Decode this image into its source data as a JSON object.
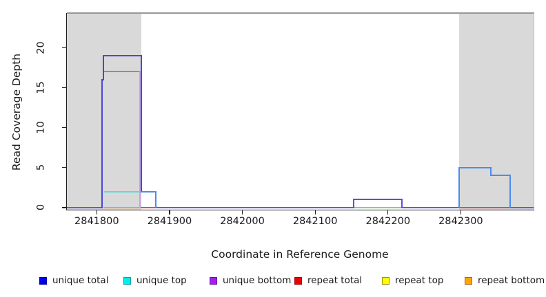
{
  "axes": {
    "x_title": "Coordinate in Reference Genome",
    "y_title": "Read Coverage Depth",
    "x_tick_labels": [
      "2841800",
      "2841900",
      "2842000",
      "2842100",
      "2842200",
      "2842300"
    ],
    "y_tick_labels": [
      "0",
      "5",
      "10",
      "15",
      "20"
    ]
  },
  "legend": {
    "items": [
      {
        "label": "unique total",
        "fill": "#0000ee",
        "border": "#0000a0"
      },
      {
        "label": "unique top",
        "fill": "#00eeee",
        "border": "#00a0a0"
      },
      {
        "label": "unique bottom",
        "fill": "#a020f0",
        "border": "#6a14a0"
      },
      {
        "label": "repeat total",
        "fill": "#ee0000",
        "border": "#a00000"
      },
      {
        "label": "repeat top",
        "fill": "#ffff00",
        "border": "#9a9000"
      },
      {
        "label": "repeat bottom",
        "fill": "#ffa500",
        "border": "#a86a00"
      }
    ]
  },
  "chart_data": {
    "type": "line",
    "subtype": "step-coverage-plot",
    "title": "",
    "xlabel": "Coordinate in Reference Genome",
    "ylabel": "Read Coverage Depth",
    "xlim": [
      2841759,
      2842400
    ],
    "ylim": [
      -0.26,
      24.32
    ],
    "xticks": [
      2841800,
      2841900,
      2842000,
      2842100,
      2842200,
      2842300
    ],
    "yticks": [
      0,
      5,
      10,
      15,
      20
    ],
    "grid": false,
    "legend_position": "bottom",
    "shade_color": "#d9d9d9",
    "shaded_regions": [
      {
        "x0": 2841759,
        "x1": 2841861
      },
      {
        "x0": 2842298,
        "x1": 2842400
      }
    ],
    "series": [
      {
        "name": "unique total",
        "color": "#0000ee",
        "steps": [
          [
            2841759,
            0
          ],
          [
            2841807,
            0
          ],
          [
            2841807,
            16
          ],
          [
            2841809,
            16
          ],
          [
            2841809,
            19
          ],
          [
            2841861,
            19
          ],
          [
            2841861,
            2
          ],
          [
            2841881,
            2
          ],
          [
            2841881,
            0
          ],
          [
            2842153,
            0
          ],
          [
            2842153,
            1
          ],
          [
            2842219,
            1
          ],
          [
            2842219,
            0
          ],
          [
            2842298,
            0
          ],
          [
            2842298,
            5
          ],
          [
            2842341,
            5
          ],
          [
            2842341,
            4
          ],
          [
            2842368,
            4
          ],
          [
            2842368,
            0
          ],
          [
            2842400,
            0
          ]
        ]
      },
      {
        "name": "unique top",
        "color": "#00eeee",
        "steps": [
          [
            2841759,
            0
          ],
          [
            2841809,
            0
          ],
          [
            2841809,
            2
          ],
          [
            2841859,
            2
          ],
          [
            2841859,
            0
          ],
          [
            2842400,
            0
          ]
        ]
      },
      {
        "name": "unique bottom",
        "color": "#a020f0",
        "steps": [
          [
            2841759,
            0
          ],
          [
            2841807,
            0
          ],
          [
            2841807,
            17
          ],
          [
            2841859,
            17
          ],
          [
            2841859,
            0
          ],
          [
            2842153,
            0
          ],
          [
            2842153,
            1
          ],
          [
            2842219,
            1
          ],
          [
            2842219,
            0
          ],
          [
            2842400,
            0
          ]
        ]
      },
      {
        "name": "repeat total",
        "color": "#ee0000",
        "steps": [
          [
            2841759,
            0
          ],
          [
            2842400,
            0
          ]
        ]
      },
      {
        "name": "repeat top",
        "color": "#ffff00",
        "steps": [
          [
            2841759,
            0
          ],
          [
            2842400,
            0
          ]
        ]
      },
      {
        "name": "repeat bottom",
        "color": "#ffa500",
        "steps": [
          [
            2841759,
            0
          ],
          [
            2842400,
            0
          ]
        ]
      }
    ],
    "render_segments": [
      {
        "x1": 2841759,
        "v1": 0,
        "x2": 2841807,
        "v2": 0,
        "color": "#6459e3"
      },
      {
        "x1": 2841881,
        "v1": 0,
        "x2": 2842153,
        "v2": 0,
        "color": "#6459e3"
      },
      {
        "x1": 2842219,
        "v1": 0,
        "x2": 2842298,
        "v2": 0,
        "color": "#6459e3"
      },
      {
        "x1": 2842368,
        "v1": 0,
        "x2": 2842400,
        "v2": 0,
        "color": "#6459e3"
      },
      {
        "x1": 2841809,
        "v1": 0,
        "x2": 2841860,
        "v2": 0,
        "color": "#ff9e1e"
      },
      {
        "x1": 2841860,
        "v1": 0,
        "x2": 2841881,
        "v2": 0,
        "color": "#e2495e"
      },
      {
        "x1": 2842298,
        "v1": 0,
        "x2": 2842368,
        "v2": 0,
        "color": "#e2495e"
      },
      {
        "x1": 2842153,
        "v1": 0,
        "x2": 2842219,
        "v2": 0,
        "color": "#8ccc8c"
      },
      {
        "x1": 2842153,
        "v1": 0,
        "x2": 2842153,
        "v2": 1,
        "color": "#5a4fdf"
      },
      {
        "x1": 2842153,
        "v1": 1,
        "x2": 2842219,
        "v2": 1,
        "color": "#5a4fdf"
      },
      {
        "x1": 2842219,
        "v1": 1,
        "x2": 2842219,
        "v2": 0,
        "color": "#5a4fdf"
      },
      {
        "x1": 2841808,
        "v1": 17,
        "x2": 2841859,
        "v2": 17,
        "color": "#a873da"
      },
      {
        "x1": 2841859,
        "v1": 17,
        "x2": 2841859,
        "v2": 0,
        "color": "#c99fe8"
      },
      {
        "x1": 2841810,
        "v1": 2,
        "x2": 2841859,
        "v2": 2,
        "color": "#5adada"
      },
      {
        "x1": 2841807,
        "v1": 0,
        "x2": 2841807,
        "v2": 16,
        "color": "#4a46dd"
      },
      {
        "x1": 2841807,
        "v1": 16,
        "x2": 2841809,
        "v2": 16,
        "color": "#4a46dd"
      },
      {
        "x1": 2841809,
        "v1": 16,
        "x2": 2841809,
        "v2": 19,
        "color": "#4a46dd"
      },
      {
        "x1": 2841809,
        "v1": 19,
        "x2": 2841861,
        "v2": 19,
        "color": "#4a46dd"
      },
      {
        "x1": 2841861,
        "v1": 19,
        "x2": 2841861,
        "v2": 2,
        "color": "#4a46dd"
      },
      {
        "x1": 2841861,
        "v1": 2,
        "x2": 2841881,
        "v2": 2,
        "color": "#4b8bef"
      },
      {
        "x1": 2841881,
        "v1": 2,
        "x2": 2841881,
        "v2": 0,
        "color": "#4b8bef"
      },
      {
        "x1": 2842298,
        "v1": 0,
        "x2": 2842298,
        "v2": 5,
        "color": "#4b8bef"
      },
      {
        "x1": 2842298,
        "v1": 5,
        "x2": 2842341,
        "v2": 5,
        "color": "#4b8bef"
      },
      {
        "x1": 2842341,
        "v1": 5,
        "x2": 2842341,
        "v2": 4,
        "color": "#4b8bef"
      },
      {
        "x1": 2842341,
        "v1": 4,
        "x2": 2842368,
        "v2": 4,
        "color": "#4b8bef"
      },
      {
        "x1": 2842368,
        "v1": 4,
        "x2": 2842368,
        "v2": 0,
        "color": "#4b8bef"
      }
    ]
  }
}
